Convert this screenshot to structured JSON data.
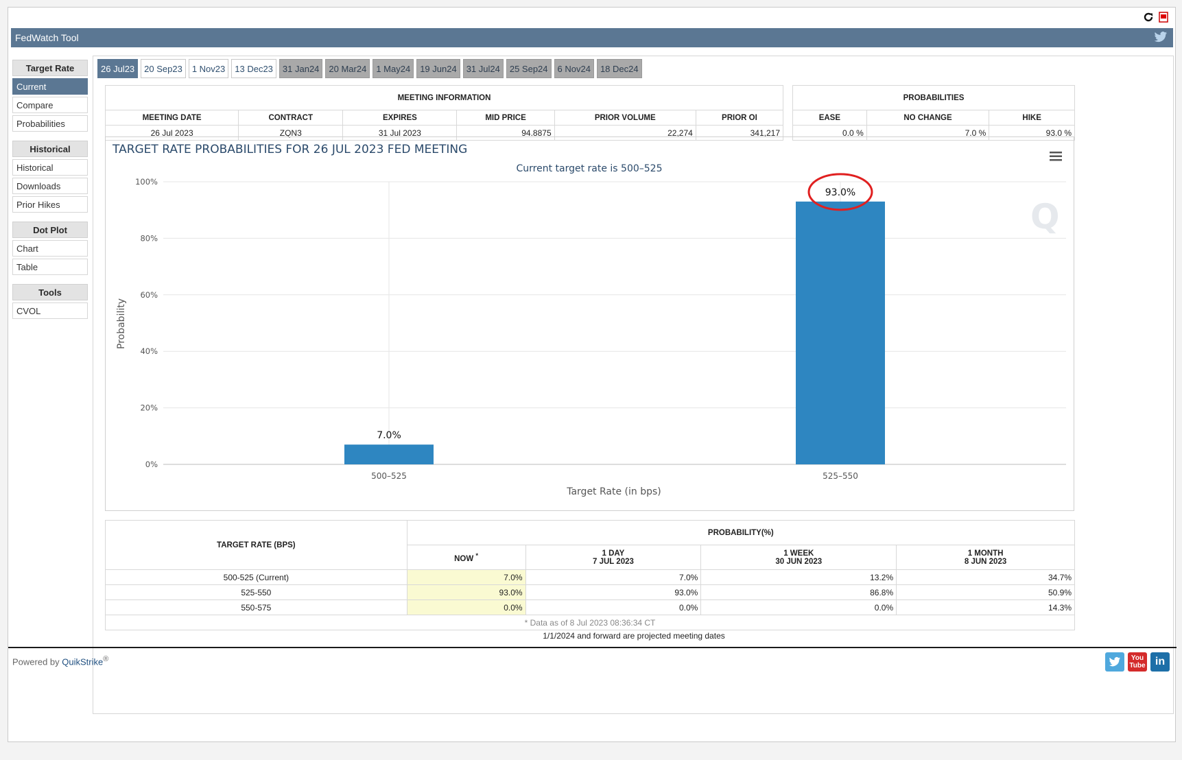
{
  "app": {
    "title": "FedWatch Tool"
  },
  "colors": {
    "header": "#5b7793",
    "bar": "#2e86c1",
    "annotation": "#e02020",
    "now_col": "#fafad2"
  },
  "sidebar": {
    "groups": [
      {
        "title": "Target Rate",
        "items": [
          "Current",
          "Compare",
          "Probabilities"
        ],
        "active": 0
      },
      {
        "title": "Historical",
        "items": [
          "Historical",
          "Downloads",
          "Prior Hikes"
        ]
      },
      {
        "title": "Dot Plot",
        "items": [
          "Chart",
          "Table"
        ]
      },
      {
        "title": "Tools",
        "items": [
          "CVOL"
        ]
      }
    ]
  },
  "tabs": [
    "26 Jul23",
    "20 Sep23",
    "1 Nov23",
    "13 Dec23",
    "31 Jan24",
    "20 Mar24",
    "1 May24",
    "19 Jun24",
    "31 Jul24",
    "25 Sep24",
    "6 Nov24",
    "18 Dec24"
  ],
  "meeting_info": {
    "title": "MEETING INFORMATION",
    "headers": [
      "MEETING DATE",
      "CONTRACT",
      "EXPIRES",
      "MID PRICE",
      "PRIOR VOLUME",
      "PRIOR OI"
    ],
    "row": [
      "26 Jul 2023",
      "ZQN3",
      "31 Jul 2023",
      "94.8875",
      "22,274",
      "341,217"
    ]
  },
  "probabilities": {
    "title": "PROBABILITIES",
    "headers": [
      "EASE",
      "NO CHANGE",
      "HIKE"
    ],
    "row": [
      "0.0 %",
      "7.0 %",
      "93.0 %"
    ]
  },
  "chart_data": {
    "type": "bar",
    "title": "TARGET RATE PROBABILITIES FOR 26 JUL 2023 FED MEETING",
    "subtitle": "Current target rate is 500–525",
    "xlabel": "Target Rate (in bps)",
    "ylabel": "Probability",
    "categories": [
      "500–525",
      "525–550"
    ],
    "values": [
      7.0,
      93.0
    ],
    "data_labels": [
      "7.0%",
      "93.0%"
    ],
    "ylim": [
      0,
      100
    ],
    "yticks": [
      "0%",
      "20%",
      "40%",
      "60%",
      "80%",
      "100%"
    ],
    "grid": true,
    "annotation": "red circle around 93.0%"
  },
  "prob_table": {
    "col1_header": "TARGET RATE (BPS)",
    "group_header": "PROBABILITY(%)",
    "now_header": "NOW",
    "now_mark": "*",
    "col_headers": [
      {
        "line1": "1 DAY",
        "line2": "7 JUL 2023"
      },
      {
        "line1": "1 WEEK",
        "line2": "30 JUN 2023"
      },
      {
        "line1": "1 MONTH",
        "line2": "8 JUN 2023"
      }
    ],
    "rows": [
      {
        "rate": "500-525 (Current)",
        "now": "7.0%",
        "vals": [
          "7.0%",
          "13.2%",
          "34.7%"
        ]
      },
      {
        "rate": "525-550",
        "now": "93.0%",
        "vals": [
          "93.0%",
          "86.8%",
          "50.9%"
        ]
      },
      {
        "rate": "550-575",
        "now": "0.0%",
        "vals": [
          "0.0%",
          "0.0%",
          "14.3%"
        ]
      }
    ],
    "footnote": "* Data as of 8 Jul 2023 08:36:34 CT"
  },
  "note": "1/1/2024 and forward are projected meeting dates",
  "footer": {
    "powered_by": "Powered by",
    "brand": "QuikStrike",
    "reg": "®"
  },
  "social": {
    "youtube_line1": "You",
    "youtube_line2": "Tube",
    "linkedin": "in"
  }
}
